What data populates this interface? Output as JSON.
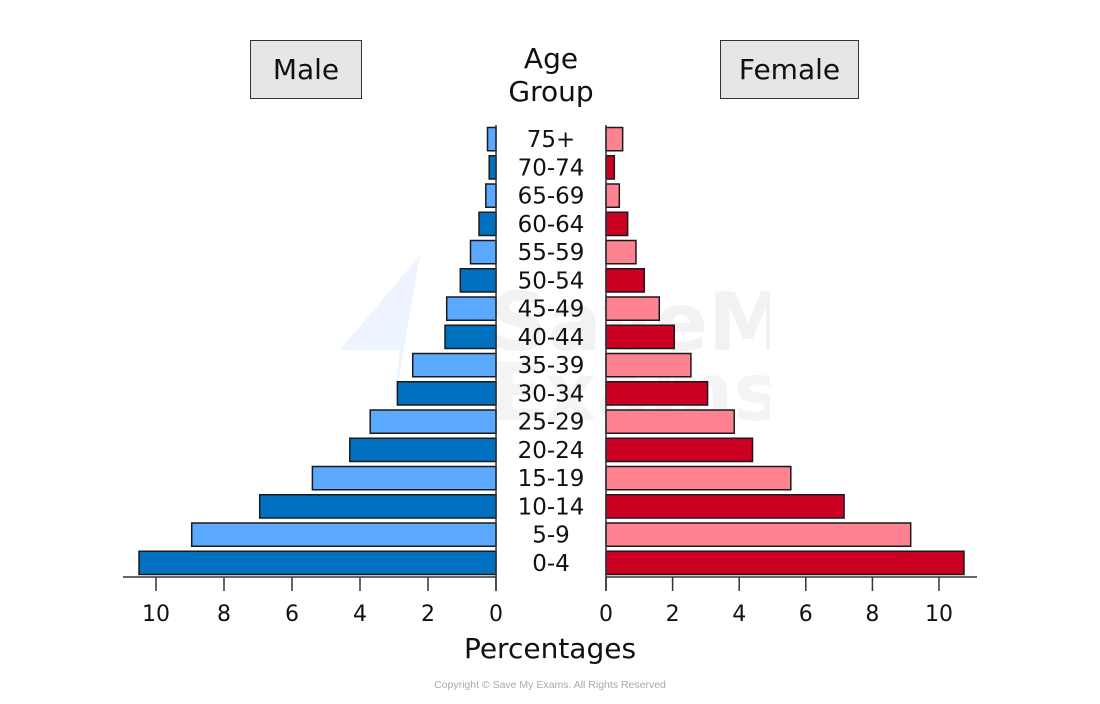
{
  "header": {
    "male_label": "Male",
    "female_label": "Female",
    "age_group_line1": "Age",
    "age_group_line2": "Group"
  },
  "axis": {
    "xlabel": "Percentages",
    "male_ticks": [
      "10",
      "8",
      "6",
      "4",
      "2",
      "0"
    ],
    "female_ticks": [
      "0",
      "2",
      "4",
      "6",
      "8",
      "10"
    ]
  },
  "footer": {
    "copyright": "Copyright © Save My Exams. All Rights Reserved"
  },
  "colors": {
    "male_dark": "#0070C0",
    "male_light": "#5AA9FF",
    "female_dark": "#CC0022",
    "female_light": "#FF8290",
    "header_box_bg": "#E6E6E6"
  },
  "chart_data": {
    "type": "bar",
    "subtype": "population-pyramid",
    "title": "",
    "categories": [
      "75+",
      "70-74",
      "65-69",
      "60-64",
      "55-59",
      "50-54",
      "45-49",
      "40-44",
      "35-39",
      "30-34",
      "25-29",
      "20-24",
      "15-19",
      "10-14",
      "5-9",
      "0-4"
    ],
    "series": [
      {
        "name": "Male",
        "values": [
          0.25,
          0.2,
          0.3,
          0.5,
          0.75,
          1.05,
          1.45,
          1.5,
          2.45,
          2.9,
          3.7,
          4.3,
          5.4,
          6.95,
          8.95,
          10.5
        ]
      },
      {
        "name": "Female",
        "values": [
          0.5,
          0.25,
          0.4,
          0.65,
          0.9,
          1.15,
          1.6,
          2.05,
          2.55,
          3.05,
          3.85,
          4.4,
          5.55,
          7.15,
          9.15,
          10.75
        ]
      }
    ],
    "xlabel": "Percentages",
    "ylabel": "Age Group",
    "xlim": [
      0,
      10.8
    ],
    "xticks": [
      0,
      2,
      4,
      6,
      8,
      10
    ],
    "legend": [
      "Male",
      "Female"
    ],
    "legend_position": "top",
    "grid": false
  }
}
